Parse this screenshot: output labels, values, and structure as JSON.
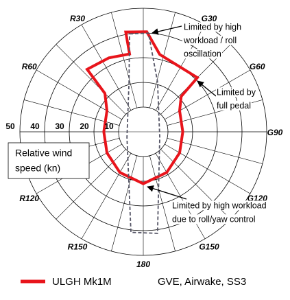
{
  "chart_data": {
    "type": "polar",
    "rlim": [
      0,
      50
    ],
    "rticks": [
      10,
      20,
      30,
      40,
      50
    ],
    "angle_ticks": [
      {
        "value": 30,
        "label": "G30"
      },
      {
        "value": 60,
        "label": "G60"
      },
      {
        "value": 90,
        "label": "G90"
      },
      {
        "value": 120,
        "label": "G120"
      },
      {
        "value": 150,
        "label": "G150"
      },
      180,
      {
        "value": 210,
        "label": "R150"
      },
      {
        "value": 240,
        "label": "R120"
      },
      {
        "value": 300,
        "label": "R60"
      },
      {
        "value": 330,
        "label": "R30"
      }
    ],
    "axis_label": [
      "Relative wind",
      "speed (kn)"
    ],
    "series": [
      {
        "name": "ULGH Mk1M",
        "color": "#e8141b",
        "style": "solid",
        "angles": [
          350,
          2,
          12,
          45,
          47,
          60,
          90,
          120,
          150,
          180,
          210,
          240,
          270,
          300,
          315,
          318,
          335,
          350
        ],
        "values": [
          41,
          40.5,
          32,
          31,
          21,
          17,
          16,
          17,
          19,
          21,
          19,
          17,
          16,
          17,
          22,
          34,
          33,
          32
        ]
      },
      {
        "color": "#555566",
        "style": "dashed",
        "angles": [
          352,
          3,
          16,
          108,
          172,
          187,
          251,
          344
        ],
        "values": [
          40,
          40,
          21,
          7,
          41.5,
          41,
          7,
          21
        ]
      }
    ],
    "legend_note": "GVE, Airwake, SS3",
    "annotations": [
      {
        "lines": [
          "Limited by high",
          "workload / roll",
          "oscillation"
        ]
      },
      {
        "lines": [
          "Limited by",
          "full pedal"
        ]
      },
      {
        "lines": [
          "Limited by high workload",
          "due to roll/yaw control"
        ]
      }
    ]
  }
}
